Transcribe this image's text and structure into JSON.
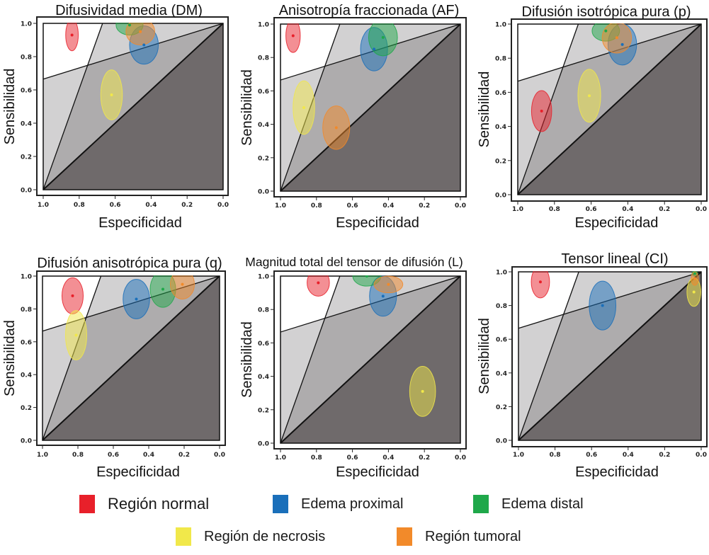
{
  "figure": {
    "legend": [
      {
        "label": "Región normal",
        "color": "#e8202a",
        "series": "normal"
      },
      {
        "label": "Edema proximal",
        "color": "#1a6fba",
        "series": "proximal"
      },
      {
        "label": "Edema distal",
        "color": "#1fa84a",
        "series": "distal"
      },
      {
        "label": "Región de necrosis",
        "color": "#f1e84a",
        "series": "necrosis"
      },
      {
        "label": "Región tumoral",
        "color": "#f28a2a",
        "series": "tumoral"
      }
    ]
  },
  "chart_data": [
    {
      "type": "scatter",
      "title": "Difusividad media (DM)",
      "xlabel": "Especificidad",
      "ylabel": "Sensibilidad",
      "xlim": [
        1.0,
        0.0
      ],
      "ylim": [
        0.0,
        1.0
      ],
      "xticks": [
        "1.0",
        "0.8",
        "0.6",
        "0.4",
        "0.2",
        "0.0"
      ],
      "yticks": [
        "0.0",
        "0.2",
        "0.4",
        "0.6",
        "0.8",
        "1.0"
      ],
      "regions": {
        "steep_line": [
          [
            1.0,
            0.0
          ],
          [
            0.67,
            1.0
          ]
        ],
        "shallow_line": [
          [
            1.0,
            0.665
          ],
          [
            0.0,
            1.0
          ]
        ],
        "diagonal": [
          [
            1.0,
            0.0
          ],
          [
            0.0,
            1.0
          ]
        ]
      },
      "series": [
        {
          "name": "Región normal",
          "color": "#e8202a",
          "spec": 0.84,
          "sens": 0.93,
          "rx": 0.035,
          "ry": 0.095
        },
        {
          "name": "Edema proximal",
          "color": "#1a6fba",
          "spec": 0.44,
          "sens": 0.87,
          "rx": 0.08,
          "ry": 0.115
        },
        {
          "name": "Edema distal",
          "color": "#1fa84a",
          "spec": 0.52,
          "sens": 0.99,
          "rx": 0.075,
          "ry": 0.06
        },
        {
          "name": "Región de necrosis",
          "color": "#f1e84a",
          "spec": 0.62,
          "sens": 0.57,
          "rx": 0.06,
          "ry": 0.15
        },
        {
          "name": "Región tumoral",
          "color": "#f28a2a",
          "spec": 0.46,
          "sens": 0.95,
          "rx": 0.08,
          "ry": 0.08
        }
      ]
    },
    {
      "type": "scatter",
      "title": "Anisotropía fraccionada (AF)",
      "xlabel": "Especificidad",
      "ylabel": "Sensibilidad",
      "xlim": [
        1.0,
        0.0
      ],
      "ylim": [
        0.0,
        1.0
      ],
      "xticks": [
        "1.0",
        "0.8",
        "0.6",
        "0.4",
        "0.2",
        "0.0"
      ],
      "yticks": [
        "0.0",
        "0.2",
        "0.4",
        "0.6",
        "0.8",
        "1.0"
      ],
      "regions": {
        "steep_line": [
          [
            1.0,
            0.0
          ],
          [
            0.67,
            1.0
          ]
        ],
        "shallow_line": [
          [
            1.0,
            0.665
          ],
          [
            0.0,
            1.0
          ]
        ],
        "diagonal": [
          [
            1.0,
            0.0
          ],
          [
            0.0,
            1.0
          ]
        ]
      },
      "series": [
        {
          "name": "Región normal",
          "color": "#e8202a",
          "spec": 0.93,
          "sens": 0.93,
          "rx": 0.04,
          "ry": 0.1
        },
        {
          "name": "Edema proximal",
          "color": "#1a6fba",
          "spec": 0.48,
          "sens": 0.85,
          "rx": 0.075,
          "ry": 0.13
        },
        {
          "name": "Edema distal",
          "color": "#1fa84a",
          "spec": 0.43,
          "sens": 0.92,
          "rx": 0.08,
          "ry": 0.11
        },
        {
          "name": "Región de necrosis",
          "color": "#f1e84a",
          "spec": 0.87,
          "sens": 0.5,
          "rx": 0.06,
          "ry": 0.16
        },
        {
          "name": "Región tumoral",
          "color": "#f28a2a",
          "spec": 0.69,
          "sens": 0.38,
          "rx": 0.075,
          "ry": 0.13
        }
      ]
    },
    {
      "type": "scatter",
      "title": "Difusión isotrópica pura (p)",
      "xlabel": "Especificidad",
      "ylabel": "Sensibilidad",
      "xlim": [
        1.0,
        0.0
      ],
      "ylim": [
        0.0,
        1.0
      ],
      "xticks": [
        "1.0",
        "0.8",
        "0.6",
        "0.4",
        "0.2",
        "0.0"
      ],
      "yticks": [
        "0.0",
        "0.2",
        "0.4",
        "0.6",
        "0.8",
        "1.0"
      ],
      "regions": {
        "steep_line": [
          [
            1.0,
            0.0
          ],
          [
            0.67,
            1.0
          ]
        ],
        "shallow_line": [
          [
            1.0,
            0.665
          ],
          [
            0.0,
            1.0
          ]
        ],
        "diagonal": [
          [
            1.0,
            0.0
          ],
          [
            0.0,
            1.0
          ]
        ]
      },
      "series": [
        {
          "name": "Región normal",
          "color": "#e8202a",
          "spec": 0.87,
          "sens": 0.49,
          "rx": 0.055,
          "ry": 0.12
        },
        {
          "name": "Edema proximal",
          "color": "#1a6fba",
          "spec": 0.43,
          "sens": 0.88,
          "rx": 0.078,
          "ry": 0.12
        },
        {
          "name": "Edema distal",
          "color": "#1fa84a",
          "spec": 0.52,
          "sens": 0.96,
          "rx": 0.075,
          "ry": 0.06
        },
        {
          "name": "Región de necrosis",
          "color": "#f1e84a",
          "spec": 0.61,
          "sens": 0.58,
          "rx": 0.062,
          "ry": 0.155
        },
        {
          "name": "Región tumoral",
          "color": "#f28a2a",
          "spec": 0.46,
          "sens": 0.92,
          "rx": 0.08,
          "ry": 0.09
        }
      ]
    },
    {
      "type": "scatter",
      "title": "Difusión anisotrópica pura (q)",
      "xlabel": "Especificidad",
      "ylabel": "Sensibilidad",
      "xlim": [
        1.0,
        0.0
      ],
      "ylim": [
        0.0,
        1.0
      ],
      "xticks": [
        "1.0",
        "0.8",
        "0.6",
        "0.4",
        "0.2",
        "0.0"
      ],
      "yticks": [
        "0.0",
        "0.2",
        "0.4",
        "0.6",
        "0.8",
        "1.0"
      ],
      "regions": {
        "steep_line": [
          [
            1.0,
            0.0
          ],
          [
            0.67,
            1.0
          ]
        ],
        "shallow_line": [
          [
            1.0,
            0.665
          ],
          [
            0.0,
            1.0
          ]
        ],
        "diagonal": [
          [
            1.0,
            0.0
          ],
          [
            0.0,
            1.0
          ]
        ]
      },
      "series": [
        {
          "name": "Región normal",
          "color": "#e8202a",
          "spec": 0.83,
          "sens": 0.88,
          "rx": 0.06,
          "ry": 0.11
        },
        {
          "name": "Edema proximal",
          "color": "#1a6fba",
          "spec": 0.47,
          "sens": 0.86,
          "rx": 0.075,
          "ry": 0.12
        },
        {
          "name": "Edema distal",
          "color": "#1fa84a",
          "spec": 0.32,
          "sens": 0.92,
          "rx": 0.072,
          "ry": 0.11
        },
        {
          "name": "Región de necrosis",
          "color": "#f1e84a",
          "spec": 0.81,
          "sens": 0.64,
          "rx": 0.06,
          "ry": 0.15
        },
        {
          "name": "Región tumoral",
          "color": "#f28a2a",
          "spec": 0.21,
          "sens": 0.95,
          "rx": 0.068,
          "ry": 0.09
        }
      ]
    },
    {
      "type": "scatter",
      "title": "Magnitud total del tensor de difusión (L)",
      "xlabel": "Especificidad",
      "ylabel": "Sensibilidad",
      "xlim": [
        1.0,
        0.0
      ],
      "ylim": [
        0.0,
        1.0
      ],
      "xticks": [
        "1.0",
        "0.8",
        "0.6",
        "0.4",
        "0.2",
        "0.0"
      ],
      "yticks": [
        "0.0",
        "0.2",
        "0.4",
        "0.6",
        "0.8",
        "1.0"
      ],
      "regions": {
        "steep_line": [
          [
            1.0,
            0.0
          ],
          [
            0.67,
            1.0
          ]
        ],
        "shallow_line": [
          [
            1.0,
            0.665
          ],
          [
            0.0,
            1.0
          ]
        ],
        "diagonal": [
          [
            1.0,
            0.0
          ],
          [
            0.0,
            1.0
          ]
        ]
      },
      "series": [
        {
          "name": "Región normal",
          "color": "#e8202a",
          "spec": 0.79,
          "sens": 0.96,
          "rx": 0.062,
          "ry": 0.08
        },
        {
          "name": "Edema proximal",
          "color": "#1a6fba",
          "spec": 0.43,
          "sens": 0.88,
          "rx": 0.075,
          "ry": 0.12
        },
        {
          "name": "Edema distal",
          "color": "#1fa84a",
          "spec": 0.52,
          "sens": 1.0,
          "rx": 0.078,
          "ry": 0.06
        },
        {
          "name": "Región de necrosis",
          "color": "#f1e84a",
          "spec": 0.21,
          "sens": 0.31,
          "rx": 0.072,
          "ry": 0.15
        },
        {
          "name": "Región tumoral",
          "color": "#f28a2a",
          "spec": 0.4,
          "sens": 0.95,
          "rx": 0.08,
          "ry": 0.05
        }
      ]
    },
    {
      "type": "scatter",
      "title": "Tensor lineal (CI)",
      "xlabel": "Especificidad",
      "ylabel": "Sensibilidad",
      "xlim": [
        1.0,
        0.0
      ],
      "ylim": [
        0.0,
        1.0
      ],
      "xticks": [
        "1.0",
        "0.8",
        "0.6",
        "0.4",
        "0.2",
        "0.0"
      ],
      "yticks": [
        "0.0",
        "0.2",
        "0.4",
        "0.6",
        "0.8",
        "1.0"
      ],
      "regions": {
        "steep_line": [
          [
            1.0,
            0.0
          ],
          [
            0.67,
            1.0
          ]
        ],
        "shallow_line": [
          [
            1.0,
            0.665
          ],
          [
            0.0,
            1.0
          ]
        ],
        "diagonal": [
          [
            1.0,
            0.0
          ],
          [
            0.0,
            1.0
          ]
        ]
      },
      "series": [
        {
          "name": "Región normal",
          "color": "#e8202a",
          "spec": 0.88,
          "sens": 0.94,
          "rx": 0.05,
          "ry": 0.095
        },
        {
          "name": "Edema proximal",
          "color": "#1a6fba",
          "spec": 0.54,
          "sens": 0.8,
          "rx": 0.073,
          "ry": 0.145
        },
        {
          "name": "Edema distal",
          "color": "#1fa84a",
          "spec": 0.035,
          "sens": 0.99,
          "rx": 0.015,
          "ry": 0.015
        },
        {
          "name": "Región de necrosis",
          "color": "#f1e84a",
          "spec": 0.04,
          "sens": 0.88,
          "rx": 0.038,
          "ry": 0.085
        },
        {
          "name": "Región tumoral",
          "color": "#f28a2a",
          "spec": 0.035,
          "sens": 0.96,
          "rx": 0.02,
          "ry": 0.04
        }
      ]
    }
  ]
}
